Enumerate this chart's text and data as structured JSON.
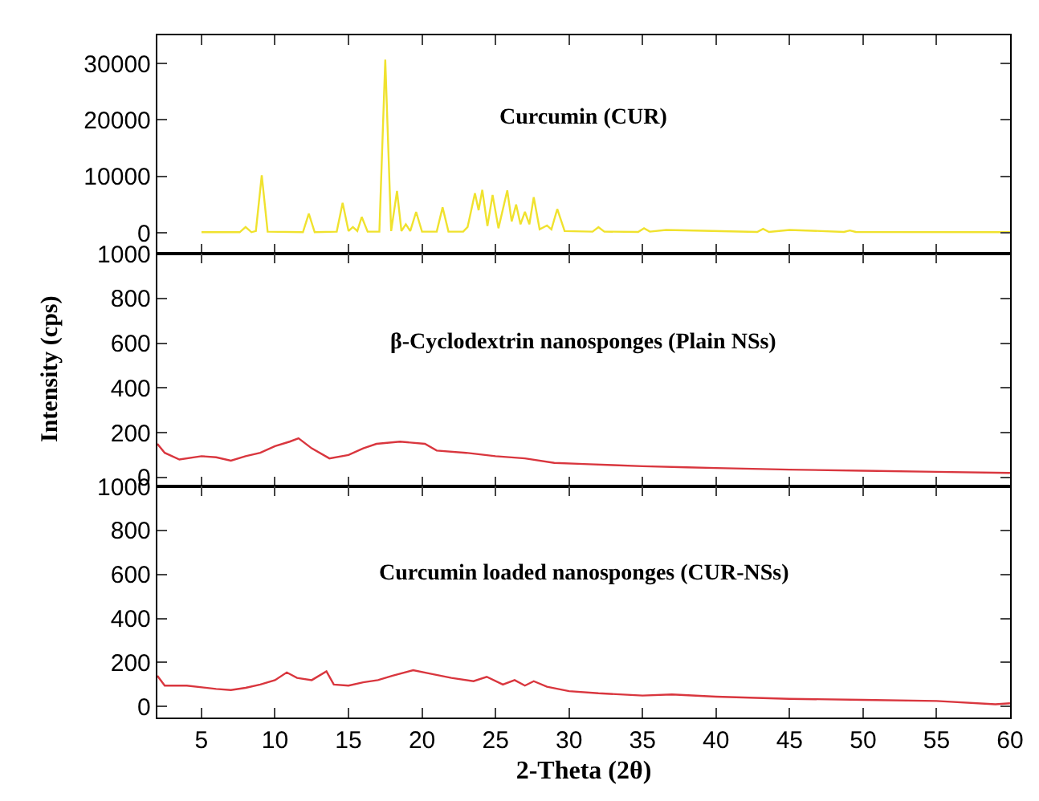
{
  "chart_data": [
    {
      "type": "line",
      "title": "Curcumin (CUR)",
      "color": "#f0e22e",
      "xlim": [
        2,
        60
      ],
      "xticks": [
        5,
        10,
        15,
        20,
        25,
        30,
        35,
        40,
        45,
        50,
        55,
        60
      ],
      "ylim": [
        -3700,
        35000
      ],
      "yticks": [
        0,
        10000,
        20000,
        30000
      ],
      "tick_labels": "y",
      "x": [
        5,
        7.6,
        8.0,
        8.4,
        8.7,
        9.1,
        9.5,
        11.9,
        12.3,
        12.7,
        14.2,
        14.6,
        15.0,
        15.3,
        15.6,
        15.9,
        16.3,
        17.1,
        17.5,
        17.9,
        18.3,
        18.6,
        18.9,
        19.2,
        19.6,
        20.0,
        21.0,
        21.4,
        21.8,
        22.8,
        23.1,
        23.6,
        23.85,
        24.1,
        24.45,
        24.8,
        25.2,
        25.8,
        26.1,
        26.4,
        26.7,
        27.0,
        27.3,
        27.6,
        28.0,
        28.5,
        28.8,
        29.2,
        29.7,
        31.6,
        32.0,
        32.4,
        34.7,
        35.1,
        35.5,
        36.6,
        38.5,
        42.8,
        43.2,
        43.6,
        45.0,
        48.7,
        49.1,
        49.5,
        60
      ],
      "values": [
        100,
        100,
        1000,
        100,
        300,
        10200,
        200,
        100,
        3400,
        100,
        200,
        5300,
        300,
        1000,
        300,
        2800,
        200,
        200,
        30700,
        300,
        7400,
        300,
        1500,
        300,
        3700,
        200,
        200,
        4500,
        200,
        200,
        1000,
        7000,
        4000,
        7600,
        1200,
        6700,
        800,
        7500,
        2000,
        5000,
        1500,
        3700,
        1500,
        6300,
        600,
        1300,
        600,
        4200,
        300,
        200,
        1000,
        200,
        150,
        800,
        200,
        500,
        400,
        150,
        700,
        150,
        500,
        150,
        400,
        150,
        100
      ]
    },
    {
      "type": "line",
      "title": "β-Cyclodextrin nanosponges (Plain NSs)",
      "ylabel": "Intensity (cps)",
      "color": "#d9363e",
      "xlim": [
        2,
        60
      ],
      "xticks": [
        5,
        10,
        15,
        20,
        25,
        30,
        35,
        40,
        45,
        50,
        55,
        60
      ],
      "ylim": [
        -40,
        1000
      ],
      "yticks": [
        0,
        200,
        400,
        600,
        800,
        1000
      ],
      "tick_labels": "y",
      "x": [
        2,
        2.5,
        3.5,
        5,
        6,
        7,
        8,
        9,
        10,
        11,
        11.6,
        12.5,
        13.7,
        15,
        16,
        16.9,
        18.5,
        20.2,
        21,
        23,
        25,
        27,
        29,
        31,
        33,
        35,
        38,
        40,
        45,
        50,
        55,
        60
      ],
      "values": [
        150,
        110,
        80,
        95,
        90,
        75,
        95,
        110,
        140,
        160,
        175,
        130,
        85,
        100,
        130,
        150,
        160,
        150,
        120,
        110,
        95,
        85,
        65,
        60,
        55,
        50,
        45,
        42,
        35,
        30,
        25,
        20
      ]
    },
    {
      "type": "line",
      "title": "Curcumin loaded nanosponges (CUR-NSs)",
      "xlabel": "2-Theta (2θ)",
      "color": "#d9363e",
      "xlim": [
        2,
        60
      ],
      "xticks": [
        5,
        10,
        15,
        20,
        25,
        30,
        35,
        40,
        45,
        50,
        55,
        60
      ],
      "ylim": [
        -50,
        1000
      ],
      "yticks": [
        0,
        200,
        400,
        600,
        800,
        1000
      ],
      "x": [
        2,
        2.5,
        4,
        6,
        7,
        8,
        9,
        10,
        10.8,
        11.5,
        12.5,
        13.5,
        14,
        15,
        16,
        17,
        18,
        19.4,
        20.5,
        22,
        23.5,
        24.4,
        25.5,
        26.3,
        27,
        27.6,
        28.5,
        30,
        32,
        35,
        37,
        40,
        45,
        50,
        55,
        59,
        60
      ],
      "values": [
        140,
        95,
        95,
        80,
        75,
        85,
        100,
        120,
        155,
        130,
        120,
        160,
        100,
        95,
        110,
        120,
        140,
        165,
        150,
        130,
        115,
        135,
        100,
        120,
        95,
        115,
        90,
        70,
        60,
        50,
        55,
        45,
        35,
        30,
        25,
        10,
        15
      ]
    }
  ]
}
